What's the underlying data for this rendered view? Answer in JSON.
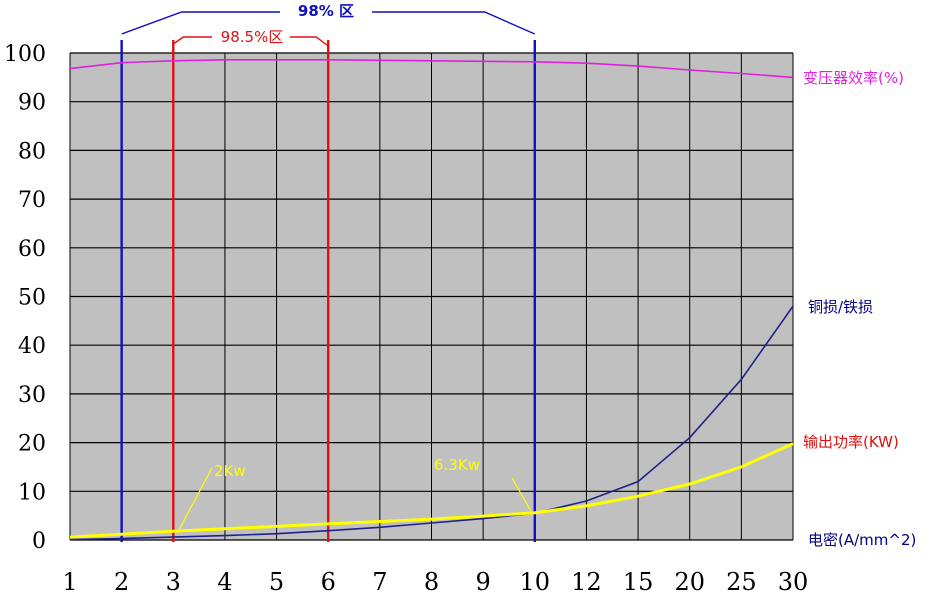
{
  "chart_data": {
    "type": "line",
    "x_categories": [
      "1",
      "2",
      "3",
      "4",
      "5",
      "6",
      "7",
      "8",
      "9",
      "10",
      "12",
      "15",
      "20",
      "25",
      "30"
    ],
    "y_ticks": [
      "0",
      "10",
      "20",
      "30",
      "40",
      "50",
      "60",
      "70",
      "80",
      "90",
      "100"
    ],
    "ylim": [
      0,
      100
    ],
    "grid": true,
    "background_color": "#c0c0c0",
    "series": [
      {
        "name": "变压器效率(%)",
        "color": "#e020e0",
        "values": [
          96.8,
          98.0,
          98.4,
          98.6,
          98.6,
          98.6,
          98.5,
          98.4,
          98.3,
          98.2,
          97.9,
          97.3,
          96.5,
          95.8,
          95.0
        ]
      },
      {
        "name": "铜损/铁损",
        "color": "#20208a",
        "values": [
          0.1,
          0.3,
          0.6,
          0.9,
          1.3,
          1.9,
          2.6,
          3.5,
          4.4,
          5.5,
          8.0,
          12.0,
          21.0,
          33.0,
          48.0
        ]
      },
      {
        "name": "输出功率(KW)",
        "color": "#ffff00",
        "values": [
          0.6,
          1.2,
          1.8,
          2.3,
          2.8,
          3.3,
          3.8,
          4.3,
          4.9,
          5.6,
          7.0,
          9.0,
          11.5,
          15.0,
          19.8
        ]
      }
    ],
    "x_label": "电密(A/mm^2)",
    "vertical_markers": [
      {
        "x": "2",
        "color": "#1010c0"
      },
      {
        "x": "10",
        "color": "#1010c0"
      },
      {
        "x": "3",
        "color": "#e01010"
      },
      {
        "x": "6",
        "color": "#e01010"
      }
    ],
    "annotations": {
      "zone_98": "98% 区",
      "zone_985": "98.5%区",
      "p_2kw": "2Kw",
      "p_63kw": "6.3Kw"
    },
    "colors": {
      "label_red": "#e01010",
      "label_blue": "#1010c0",
      "label_navy": "#000080",
      "grid": "#000000"
    }
  }
}
